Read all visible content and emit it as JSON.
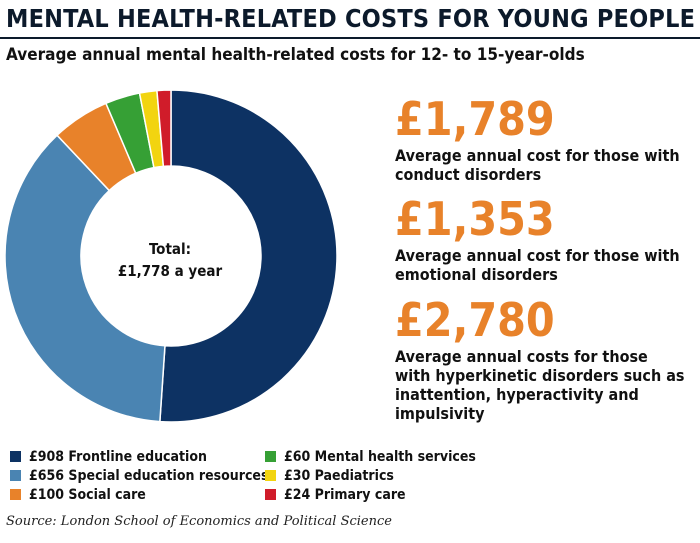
{
  "header": {
    "title": "MENTAL HEALTH-RELATED COSTS FOR YOUNG PEOPLE",
    "subtitle": "Average annual mental health-related costs for 12- to 15-year-olds"
  },
  "chart_data": {
    "type": "pie",
    "variant": "donut",
    "categories": [
      "Frontline education",
      "Special education resources",
      "Social care",
      "Mental health services",
      "Paediatrics",
      "Primary care"
    ],
    "values": [
      908,
      656,
      100,
      60,
      30,
      24
    ],
    "labels": [
      "£908 Frontline education",
      "£656 Special education resources",
      "£100 Social care",
      "£60 Mental health services",
      "£30 Paediatrics",
      "£24 Primary care"
    ],
    "colors": [
      "#0d3263",
      "#4a84b2",
      "#e8822a",
      "#36a035",
      "#f2d410",
      "#d01c2a"
    ],
    "center_label": [
      "Total:",
      "£1,778 a year"
    ],
    "legend_position": "bottom"
  },
  "stats": [
    {
      "value": "£1,789",
      "description": "Average annual cost for those with conduct disorders"
    },
    {
      "value": "£1,353",
      "description": "Average annual cost for those with emotional disorders"
    },
    {
      "value": "£2,780",
      "description": "Average annual costs for those with hyperkinetic disorders such as inattention, hyperactivity and impulsivity"
    }
  ],
  "source": "Source: London School of Economics and Political Science"
}
